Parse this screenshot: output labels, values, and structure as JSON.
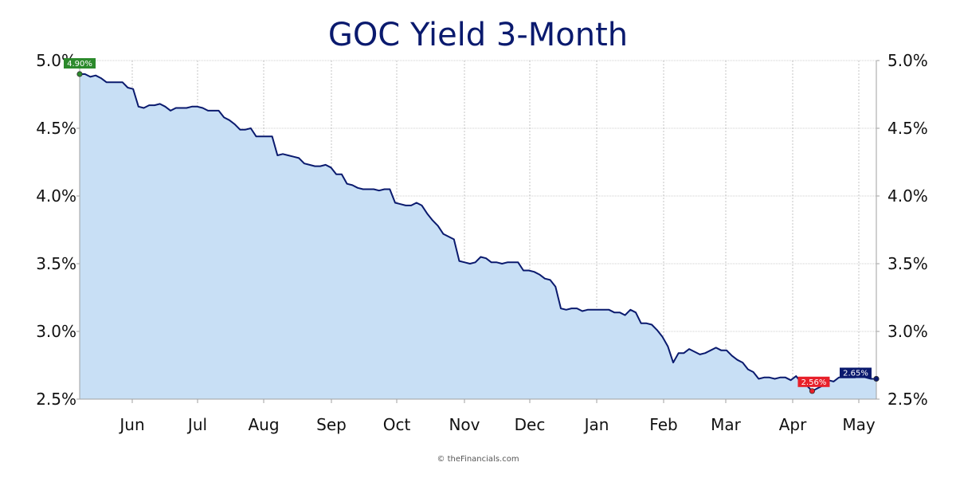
{
  "chart_data": {
    "type": "area",
    "title": "GOC Yield 3-Month",
    "xlabel": "",
    "ylabel": "",
    "ylim": [
      2.5,
      5.0
    ],
    "y_ticks": [
      "2.5%",
      "3.0%",
      "3.5%",
      "4.0%",
      "4.5%",
      "5.0%"
    ],
    "y_tick_values": [
      2.5,
      3.0,
      3.5,
      4.0,
      4.5,
      5.0
    ],
    "x_tick_labels": [
      "Jun",
      "Jul",
      "Aug",
      "Sep",
      "Oct",
      "Nov",
      "Dec",
      "Jan",
      "Feb",
      "Mar",
      "Apr",
      "May"
    ],
    "grid": true,
    "series": [
      {
        "values": [
          4.9,
          4.9,
          4.88,
          4.89,
          4.87,
          4.84,
          4.84,
          4.84,
          4.84,
          4.8,
          4.79,
          4.66,
          4.65,
          4.67,
          4.67,
          4.68,
          4.66,
          4.63,
          4.65,
          4.65,
          4.65,
          4.66,
          4.66,
          4.65,
          4.63,
          4.63,
          4.63,
          4.58,
          4.56,
          4.53,
          4.49,
          4.49,
          4.5,
          4.44,
          4.44,
          4.44,
          4.44,
          4.3,
          4.31,
          4.3,
          4.29,
          4.28,
          4.24,
          4.23,
          4.22,
          4.22,
          4.23,
          4.21,
          4.16,
          4.16,
          4.09,
          4.08,
          4.06,
          4.05,
          4.05,
          4.05,
          4.04,
          4.05,
          4.05,
          3.95,
          3.94,
          3.93,
          3.93,
          3.95,
          3.93,
          3.87,
          3.82,
          3.78,
          3.72,
          3.7,
          3.68,
          3.52,
          3.51,
          3.5,
          3.51,
          3.55,
          3.54,
          3.51,
          3.51,
          3.5,
          3.51,
          3.51,
          3.51,
          3.45,
          3.45,
          3.44,
          3.42,
          3.39,
          3.38,
          3.33,
          3.17,
          3.16,
          3.17,
          3.17,
          3.15,
          3.16,
          3.16,
          3.16,
          3.16,
          3.16,
          3.14,
          3.14,
          3.12,
          3.16,
          3.14,
          3.06,
          3.06,
          3.05,
          3.01,
          2.96,
          2.89,
          2.77,
          2.84,
          2.84,
          2.87,
          2.85,
          2.83,
          2.84,
          2.86,
          2.88,
          2.86,
          2.86,
          2.82,
          2.79,
          2.77,
          2.72,
          2.7,
          2.65,
          2.66,
          2.66,
          2.65,
          2.66,
          2.66,
          2.64,
          2.67,
          2.62,
          2.6,
          2.56,
          2.58,
          2.6,
          2.64,
          2.63,
          2.66,
          2.66,
          2.66,
          2.66,
          2.67,
          2.66,
          2.65,
          2.65
        ]
      }
    ],
    "markers": [
      {
        "label": "4.90%",
        "value": 4.9,
        "kind": "start",
        "color": "#2c8a2c"
      },
      {
        "label": "2.56%",
        "value": 2.56,
        "kind": "min",
        "color": "#e8202a"
      },
      {
        "label": "2.65%",
        "value": 2.65,
        "kind": "last",
        "color": "#0a1a6e"
      }
    ],
    "colors": {
      "line": "#0a1a6e",
      "fill": "#c8dff5",
      "grid": "#a0a0a0",
      "axis": "#a0a0a0"
    }
  },
  "footer": {
    "credit": "© theFinancials.com"
  }
}
